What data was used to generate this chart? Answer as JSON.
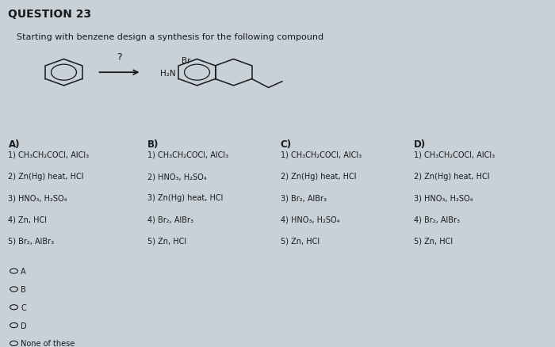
{
  "title": "QUESTION 23",
  "subtitle": "Starting with benzene design a synthesis for the following compound",
  "bg_color": "#c8d0d8",
  "text_color": "#1a1a1a",
  "columns": {
    "A": {
      "header": "A)",
      "steps": [
        "1) CH₃CH₂COCl, AlCl₃",
        "2) Zn(Hg) heat, HCl",
        "3) HNO₃, H₂SO₄",
        "4) Zn, HCl",
        "5) Br₂, AlBr₃"
      ]
    },
    "B": {
      "header": "B)",
      "steps": [
        "1) CH₃CH₂COCl, AlCl₃",
        "2) HNO₃, H₂SO₄",
        "3) Zn(Hg) heat, HCl",
        "4) Br₂, AlBr₃",
        "5) Zn, HCl"
      ]
    },
    "C": {
      "header": "C)",
      "steps": [
        "1) CH₃CH₂COCl, AlCl₃",
        "2) Zn(Hg) heat, HCl",
        "3) Br₂, AlBr₃",
        "4) HNO₃, H₂SO₄",
        "5) Zn, HCl"
      ]
    },
    "D": {
      "header": "D)",
      "steps": [
        "1) CH₃CH₂COCl, AlCl₃",
        "2) Zn(Hg) heat, HCl",
        "3) HNO₃, H₂SO₄",
        "4) Br₂, AlBr₃",
        "5) Zn, HCl"
      ]
    }
  },
  "choices": [
    "A",
    "B",
    "C",
    "D",
    "None of these"
  ],
  "font_size_title": 10,
  "font_size_subtitle": 8,
  "font_size_text": 7,
  "font_size_header": 8.5
}
